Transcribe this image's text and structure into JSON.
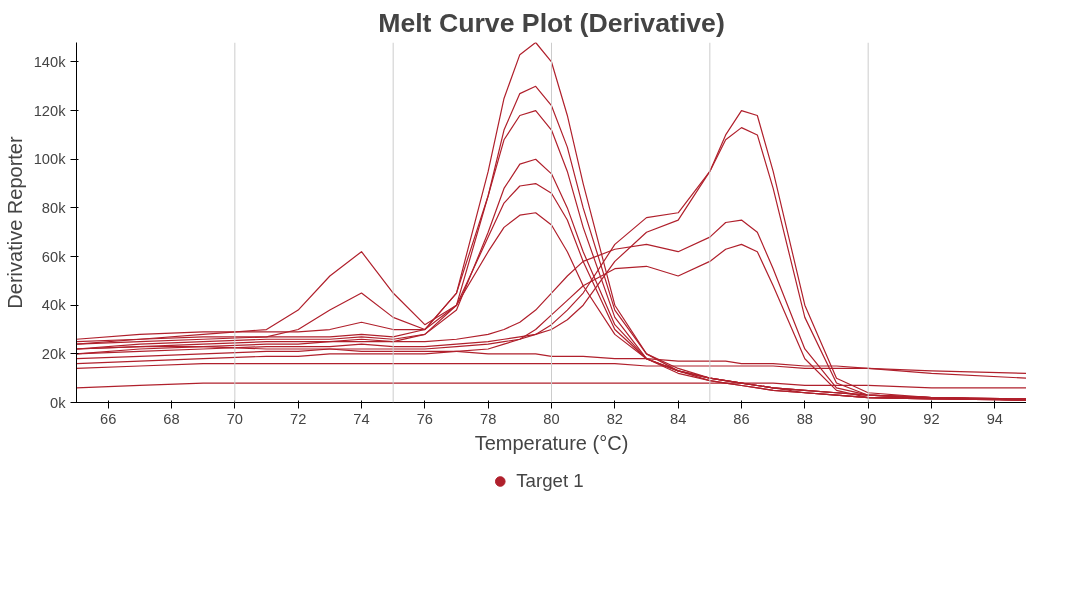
{
  "chart_data": {
    "type": "line",
    "title": "Melt Curve Plot (Derivative)",
    "xlabel": "Temperature (°C)",
    "ylabel": "Derivative Reporter",
    "x": [
      65,
      67,
      69,
      71,
      72,
      73,
      74,
      75,
      76,
      77,
      78,
      78.5,
      79,
      79.5,
      80,
      80.5,
      81,
      82,
      83,
      84,
      85,
      85.5,
      86,
      86.5,
      87,
      88,
      89,
      90,
      92,
      95
    ],
    "xlim": [
      65,
      95
    ],
    "ylim": [
      0,
      148000
    ],
    "xticks": [
      66,
      68,
      70,
      72,
      74,
      76,
      78,
      80,
      82,
      84,
      86,
      88,
      90,
      92,
      94
    ],
    "yticks": [
      {
        "value": 0,
        "label": "0k"
      },
      {
        "value": 20000,
        "label": "20k"
      },
      {
        "value": 40000,
        "label": "40k"
      },
      {
        "value": 60000,
        "label": "60k"
      },
      {
        "value": 80000,
        "label": "80k"
      },
      {
        "value": 100000,
        "label": "100k"
      },
      {
        "value": 120000,
        "label": "120k"
      },
      {
        "value": 140000,
        "label": "140k"
      }
    ],
    "grid": false,
    "legend": "bottom",
    "marker": "none",
    "line_style": "solid",
    "ref_lines": [
      {
        "axis": "x",
        "value": 70,
        "label": null,
        "color": "#cccccc"
      },
      {
        "axis": "x",
        "value": 75,
        "label": null,
        "color": "#cccccc"
      },
      {
        "axis": "x",
        "value": 80,
        "label": null,
        "color": "#cccccc"
      },
      {
        "axis": "x",
        "value": 85,
        "label": null,
        "color": "#cccccc"
      },
      {
        "axis": "x",
        "value": 90,
        "label": null,
        "color": "#cccccc"
      }
    ],
    "series": [
      {
        "name": "Target 1",
        "color": "#b0202c",
        "values": [
          25000,
          26000,
          27000,
          27000,
          27000,
          27000,
          28000,
          27000,
          30000,
          45000,
          95000,
          125000,
          143000,
          148000,
          140000,
          118000,
          90000,
          40000,
          20000,
          13000,
          9000,
          8000,
          7000,
          6000,
          5000,
          4000,
          3000,
          2000,
          1500,
          1000
        ]
      },
      {
        "color": "#b0202c",
        "values": [
          22000,
          24000,
          25000,
          26000,
          26000,
          26000,
          27000,
          26000,
          28000,
          40000,
          85000,
          112000,
          127000,
          130000,
          122000,
          105000,
          80000,
          38000,
          20000,
          14000,
          10000,
          9000,
          8000,
          7000,
          6000,
          4000,
          3000,
          2000,
          2000,
          1000
        ]
      },
      {
        "color": "#b0202c",
        "values": [
          24000,
          25000,
          26000,
          27000,
          30000,
          38000,
          45000,
          35000,
          30000,
          45000,
          85000,
          108000,
          118000,
          120000,
          112000,
          95000,
          72000,
          35000,
          18000,
          12000,
          9000,
          8000,
          7000,
          6000,
          5000,
          4000,
          3000,
          2000,
          1500,
          1000
        ]
      },
      {
        "color": "#b0202c",
        "values": [
          20000,
          22000,
          23000,
          24000,
          24000,
          25000,
          25000,
          25000,
          28000,
          38000,
          70000,
          88000,
          98000,
          100000,
          94000,
          80000,
          62000,
          32000,
          18000,
          13000,
          10000,
          9000,
          8000,
          7000,
          6000,
          5000,
          4000,
          3000,
          2000,
          1500
        ]
      },
      {
        "color": "#b0202c",
        "values": [
          24000,
          26000,
          28000,
          30000,
          38000,
          52000,
          62000,
          45000,
          32000,
          40000,
          62000,
          72000,
          77000,
          78000,
          73000,
          62000,
          48000,
          28000,
          18000,
          13000,
          10000,
          9000,
          8000,
          7000,
          6000,
          5000,
          4000,
          3000,
          2000,
          1500
        ]
      },
      {
        "color": "#b0202c",
        "values": [
          26000,
          28000,
          29000,
          29000,
          29000,
          30000,
          33000,
          30000,
          30000,
          40000,
          68000,
          82000,
          89000,
          90000,
          86000,
          75000,
          58000,
          30000,
          18000,
          13000,
          10000,
          9000,
          8000,
          7000,
          6000,
          5000,
          4000,
          3000,
          2000,
          1500
        ]
      },
      {
        "color": "#b0202c",
        "values": [
          20000,
          21000,
          22000,
          23000,
          23000,
          23000,
          24000,
          23000,
          23000,
          24000,
          25000,
          26000,
          27000,
          28000,
          30000,
          34000,
          40000,
          58000,
          70000,
          75000,
          95000,
          110000,
          120000,
          118000,
          95000,
          40000,
          10000,
          4000,
          2000,
          1000
        ]
      },
      {
        "color": "#b0202c",
        "values": [
          18000,
          19000,
          20000,
          21000,
          21000,
          22000,
          22000,
          22000,
          22000,
          23000,
          24000,
          25000,
          26000,
          28000,
          32000,
          38000,
          45000,
          65000,
          76000,
          78000,
          95000,
          108000,
          113000,
          110000,
          88000,
          35000,
          8000,
          3000,
          2000,
          1000
        ]
      },
      {
        "color": "#b0202c",
        "values": [
          22000,
          23000,
          24000,
          25000,
          25000,
          25000,
          26000,
          25000,
          25000,
          26000,
          28000,
          30000,
          33000,
          38000,
          45000,
          52000,
          58000,
          63000,
          65000,
          62000,
          68000,
          74000,
          75000,
          70000,
          55000,
          22000,
          6000,
          3000,
          2000,
          1000
        ]
      },
      {
        "color": "#b0202c",
        "values": [
          16000,
          17000,
          18000,
          19000,
          19000,
          20000,
          20000,
          20000,
          20000,
          21000,
          22000,
          24000,
          26000,
          30000,
          36000,
          42000,
          48000,
          55000,
          56000,
          52000,
          58000,
          63000,
          65000,
          62000,
          48000,
          18000,
          5000,
          2000,
          1500,
          1000
        ]
      },
      {
        "color": "#b0202c",
        "values": [
          6000,
          7000,
          8000,
          8000,
          8000,
          8000,
          8000,
          8000,
          8000,
          8000,
          8000,
          8000,
          8000,
          8000,
          8000,
          8000,
          8000,
          8000,
          8000,
          8000,
          8000,
          8000,
          8000,
          8000,
          8000,
          7000,
          7000,
          7000,
          6000,
          6000
        ]
      },
      {
        "color": "#b0202c",
        "values": [
          14000,
          15000,
          16000,
          16000,
          16000,
          16000,
          16000,
          16000,
          16000,
          16000,
          16000,
          16000,
          16000,
          16000,
          16000,
          16000,
          16000,
          16000,
          15000,
          15000,
          15000,
          15000,
          15000,
          15000,
          15000,
          14000,
          14000,
          14000,
          13000,
          12000
        ]
      },
      {
        "color": "#b0202c",
        "values": [
          22000,
          23000,
          23000,
          22000,
          22000,
          22000,
          21000,
          21000,
          21000,
          21000,
          20000,
          20000,
          20000,
          20000,
          19000,
          19000,
          19000,
          18000,
          18000,
          17000,
          17000,
          17000,
          16000,
          16000,
          16000,
          15000,
          15000,
          14000,
          12000,
          10000
        ]
      }
    ]
  }
}
